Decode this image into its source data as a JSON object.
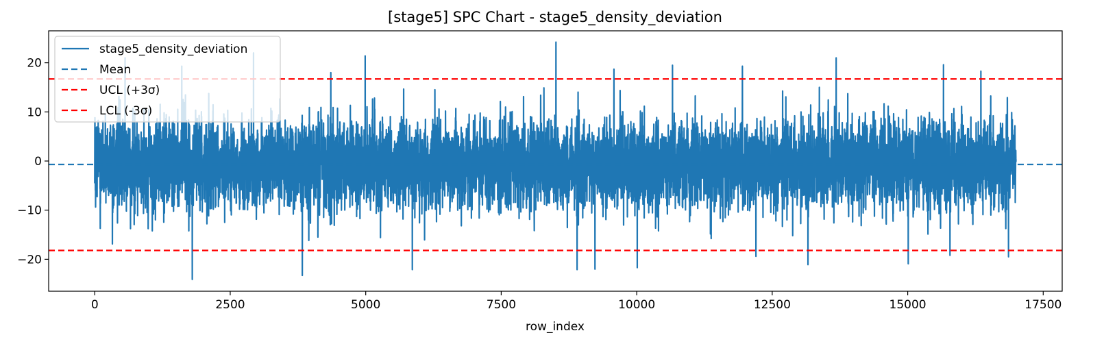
{
  "chart_data": {
    "type": "line",
    "title": "[stage5] SPC Chart - stage5_density_deviation",
    "xlabel": "row_index",
    "ylabel": "",
    "xlim": [
      -850,
      17850
    ],
    "ylim": [
      -26.5,
      26.5
    ],
    "xticks": [
      0,
      2500,
      5000,
      7500,
      10000,
      12500,
      15000,
      17500
    ],
    "xtick_labels": [
      "0",
      "2500",
      "5000",
      "7500",
      "10000",
      "12500",
      "15000",
      "17500"
    ],
    "yticks": [
      -20,
      -10,
      0,
      10,
      20
    ],
    "ytick_labels": [
      "−20",
      "−10",
      "0",
      "10",
      "20"
    ],
    "grid": false,
    "legend_position": "upper-left",
    "series": [
      {
        "name": "stage5_density_deviation",
        "color": "#1f77b4",
        "style": "solid",
        "n_points": 17000,
        "x_range": [
          0,
          16999
        ],
        "typical_band": [
          -8,
          8
        ],
        "spikes": [
          {
            "x": 560,
            "y": 21.0
          },
          {
            "x": 1605,
            "y": 19.3
          },
          {
            "x": 1800,
            "y": -24.1
          },
          {
            "x": 2930,
            "y": 22.0
          },
          {
            "x": 3830,
            "y": -23.3
          },
          {
            "x": 4355,
            "y": 18.0
          },
          {
            "x": 4990,
            "y": 21.4
          },
          {
            "x": 5860,
            "y": -22.1
          },
          {
            "x": 8510,
            "y": 24.2
          },
          {
            "x": 8900,
            "y": -22.1
          },
          {
            "x": 9230,
            "y": -22.0
          },
          {
            "x": 9580,
            "y": 18.7
          },
          {
            "x": 10010,
            "y": -21.7
          },
          {
            "x": 10660,
            "y": 19.5
          },
          {
            "x": 11950,
            "y": 19.3
          },
          {
            "x": 12200,
            "y": -19.4
          },
          {
            "x": 13680,
            "y": 21.0
          },
          {
            "x": 13160,
            "y": -21.1
          },
          {
            "x": 15010,
            "y": -20.9
          },
          {
            "x": 15660,
            "y": 19.6
          },
          {
            "x": 15780,
            "y": -19.2
          },
          {
            "x": 16350,
            "y": 18.3
          },
          {
            "x": 16860,
            "y": -19.5
          }
        ]
      },
      {
        "name": "Mean",
        "color": "#1f77b4",
        "style": "dashed",
        "value": -0.7
      },
      {
        "name": "UCL (+3σ)",
        "color": "#ff0000",
        "style": "dashed",
        "value": 16.7
      },
      {
        "name": "LCL (-3σ)",
        "color": "#ff0000",
        "style": "dashed",
        "value": -18.2
      }
    ]
  }
}
